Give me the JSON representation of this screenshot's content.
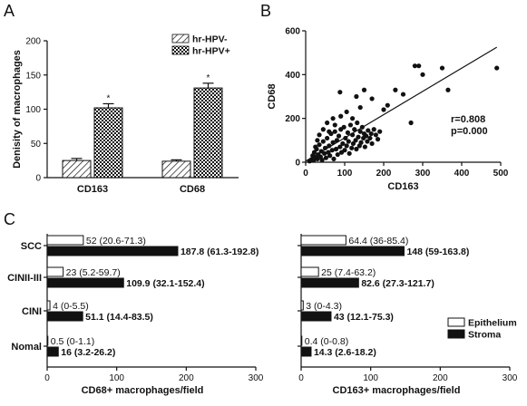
{
  "panels": {
    "a": "A",
    "b": "B",
    "c": "C"
  },
  "chart_data": [
    {
      "id": "A",
      "type": "bar",
      "ylabel": "Denisity of macrophages",
      "xlabel": "",
      "ylim": [
        0,
        200
      ],
      "yticks": [
        0,
        50,
        100,
        150,
        200
      ],
      "categories": [
        "CD163",
        "CD68"
      ],
      "series": [
        {
          "name": "hr-HPV-",
          "values": [
            25,
            24
          ],
          "errors": [
            3,
            2
          ],
          "pattern": "hatch"
        },
        {
          "name": "hr-HPV+",
          "values": [
            102,
            131
          ],
          "errors": [
            6,
            7
          ],
          "pattern": "checker"
        }
      ],
      "annotations": [
        {
          "category": "CD163",
          "series": "hr-HPV+",
          "text": "*"
        },
        {
          "category": "CD68",
          "series": "hr-HPV+",
          "text": "*"
        }
      ]
    },
    {
      "id": "B",
      "type": "scatter",
      "xlabel": "CD163",
      "ylabel": "CD68",
      "xlim": [
        0,
        500
      ],
      "ylim": [
        0,
        600
      ],
      "xticks": [
        0,
        100,
        200,
        300,
        400,
        500
      ],
      "yticks": [
        0,
        200,
        400,
        600
      ],
      "stats": [
        "r=0.808",
        "p=0.000"
      ],
      "fit_line": {
        "x": [
          0,
          490
        ],
        "y": [
          5,
          525
        ]
      },
      "points": [
        [
          10,
          5
        ],
        [
          15,
          12
        ],
        [
          18,
          30
        ],
        [
          20,
          8
        ],
        [
          22,
          45
        ],
        [
          25,
          20
        ],
        [
          28,
          60
        ],
        [
          30,
          15
        ],
        [
          32,
          35
        ],
        [
          35,
          80
        ],
        [
          38,
          25
        ],
        [
          40,
          50
        ],
        [
          42,
          10
        ],
        [
          45,
          95
        ],
        [
          48,
          40
        ],
        [
          50,
          65
        ],
        [
          52,
          20
        ],
        [
          55,
          110
        ],
        [
          58,
          45
        ],
        [
          60,
          75
        ],
        [
          62,
          30
        ],
        [
          65,
          130
        ],
        [
          68,
          55
        ],
        [
          70,
          90
        ],
        [
          72,
          15
        ],
        [
          75,
          140
        ],
        [
          78,
          60
        ],
        [
          80,
          100
        ],
        [
          82,
          35
        ],
        [
          85,
          120
        ],
        [
          88,
          70
        ],
        [
          90,
          150
        ],
        [
          92,
          45
        ],
        [
          95,
          85
        ],
        [
          98,
          160
        ],
        [
          100,
          55
        ],
        [
          102,
          110
        ],
        [
          105,
          75
        ],
        [
          108,
          135
        ],
        [
          110,
          95
        ],
        [
          112,
          40
        ],
        [
          115,
          170
        ],
        [
          118,
          65
        ],
        [
          120,
          125
        ],
        [
          122,
          85
        ],
        [
          125,
          150
        ],
        [
          128,
          100
        ],
        [
          130,
          60
        ],
        [
          132,
          180
        ],
        [
          135,
          115
        ],
        [
          138,
          75
        ],
        [
          140,
          140
        ],
        [
          142,
          90
        ],
        [
          145,
          160
        ],
        [
          148,
          110
        ],
        [
          150,
          130
        ],
        [
          152,
          70
        ],
        [
          155,
          120
        ],
        [
          158,
          95
        ],
        [
          160,
          145
        ],
        [
          165,
          110
        ],
        [
          168,
          130
        ],
        [
          170,
          85
        ],
        [
          175,
          150
        ],
        [
          180,
          125
        ],
        [
          185,
          105
        ],
        [
          190,
          140
        ],
        [
          60,
          140
        ],
        [
          75,
          170
        ],
        [
          90,
          210
        ],
        [
          105,
          230
        ],
        [
          120,
          200
        ],
        [
          140,
          250
        ],
        [
          88,
          320
        ],
        [
          130,
          300
        ],
        [
          150,
          330
        ],
        [
          170,
          290
        ],
        [
          200,
          240
        ],
        [
          210,
          260
        ],
        [
          230,
          330
        ],
        [
          250,
          310
        ],
        [
          270,
          180
        ],
        [
          280,
          440
        ],
        [
          290,
          440
        ],
        [
          300,
          400
        ],
        [
          350,
          430
        ],
        [
          365,
          330
        ],
        [
          490,
          430
        ],
        [
          30,
          100
        ],
        [
          45,
          150
        ],
        [
          55,
          180
        ],
        [
          70,
          200
        ],
        [
          25,
          70
        ],
        [
          35,
          125
        ]
      ]
    },
    {
      "id": "C-left",
      "type": "bar",
      "orientation": "horizontal",
      "xlabel": "CD68+ macrophages/field",
      "ylabel": "",
      "xlim": [
        0,
        300
      ],
      "xticks": [
        0,
        100,
        200,
        300
      ],
      "categories": [
        "SCC",
        "CINII-III",
        "CINI",
        "Nomal"
      ],
      "series": [
        {
          "name": "Epithelium",
          "values": [
            52,
            23,
            4,
            0.5
          ],
          "labels": [
            "52 (20.6-71.3)",
            "23 (5.2-59.7)",
            "4 (0-5.5)",
            "0.5 (0-1.1)"
          ]
        },
        {
          "name": "Stroma",
          "values": [
            187.8,
            109.9,
            51.1,
            16
          ],
          "labels": [
            "187.8 (61.3-192.8)",
            "109.9 (32.1-152.4)",
            "51.1 (14.4-83.5)",
            "16 (3.2-26.2)"
          ]
        }
      ]
    },
    {
      "id": "C-right",
      "type": "bar",
      "orientation": "horizontal",
      "xlabel": "CD163+ macrophages/field",
      "ylabel": "",
      "xlim": [
        0,
        300
      ],
      "xticks": [
        0,
        100,
        200,
        300
      ],
      "categories": [
        "SCC",
        "CINII-III",
        "CINI",
        "Nomal"
      ],
      "legend": [
        "Epithelium",
        "Stroma"
      ],
      "series": [
        {
          "name": "Epithelium",
          "values": [
            64.4,
            25,
            3,
            0.4
          ],
          "labels": [
            "64.4 (36-85.4)",
            "25 (7.4-63.2)",
            "3 (0-4.3)",
            "0.4 (0-0.8)"
          ]
        },
        {
          "name": "Stroma",
          "values": [
            148,
            82.6,
            43,
            14.3
          ],
          "labels": [
            "148 (59-163.8)",
            "82.6 (27.3-121.7)",
            "43 (12.1-75.3)",
            "14.3 (2.6-18.2)"
          ]
        }
      ]
    }
  ]
}
